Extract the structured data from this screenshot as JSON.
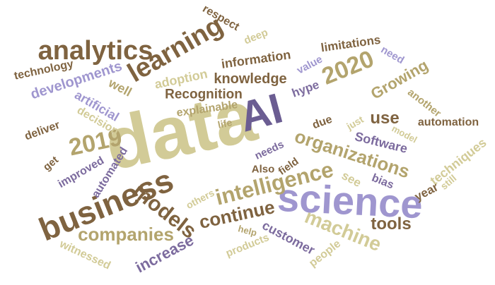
{
  "words": [
    {
      "text": "data",
      "color": "#d2cb97"
    },
    {
      "text": "science",
      "color": "#9f96cf"
    },
    {
      "text": "business",
      "color": "#7f6340"
    },
    {
      "text": "analytics",
      "color": "#7f6340"
    },
    {
      "text": "learning",
      "color": "#7f6340"
    },
    {
      "text": "AI",
      "color": "#6b5d92"
    },
    {
      "text": "intelligence",
      "color": "#b3a46d"
    },
    {
      "text": "organizations",
      "color": "#b3a46d"
    },
    {
      "text": "2019",
      "color": "#b3a46d"
    },
    {
      "text": "2020",
      "color": "#b3a46d"
    },
    {
      "text": "models",
      "color": "#7f6340"
    },
    {
      "text": "machine",
      "color": "#d2cb97"
    },
    {
      "text": "continue",
      "color": "#7f6340"
    },
    {
      "text": "companies",
      "color": "#b3a46d"
    },
    {
      "text": "developments",
      "color": "#9f96cf"
    },
    {
      "text": "adoption",
      "color": "#d2cb97"
    },
    {
      "text": "knowledge",
      "color": "#7f6340"
    },
    {
      "text": "Recognition",
      "color": "#7f6340"
    },
    {
      "text": "information",
      "color": "#7f6340"
    },
    {
      "text": "limitations",
      "color": "#7f6340"
    },
    {
      "text": "Growing",
      "color": "#b3a46d"
    },
    {
      "text": "tools",
      "color": "#7f6340"
    },
    {
      "text": "use",
      "color": "#7f6340"
    },
    {
      "text": "Software",
      "color": "#7c6b9e"
    },
    {
      "text": "customer",
      "color": "#7c6b9e"
    },
    {
      "text": "increase",
      "color": "#7c6b9e"
    },
    {
      "text": "artificial",
      "color": "#9f96cf"
    },
    {
      "text": "explainable",
      "color": "#b3a46d"
    },
    {
      "text": "technology",
      "color": "#7f6340"
    },
    {
      "text": "well",
      "color": "#b3a46d"
    },
    {
      "text": "decision",
      "color": "#d2cb97"
    },
    {
      "text": "deliver",
      "color": "#7f6340"
    },
    {
      "text": "improved",
      "color": "#7c6b9e"
    },
    {
      "text": "automated",
      "color": "#7c6b9e"
    },
    {
      "text": "get",
      "color": "#7f6340"
    },
    {
      "text": "respect",
      "color": "#7f6340"
    },
    {
      "text": "deep",
      "color": "#d2cb97"
    },
    {
      "text": "value",
      "color": "#9f96cf"
    },
    {
      "text": "hype",
      "color": "#7c6b9e"
    },
    {
      "text": "need",
      "color": "#9f96cf"
    },
    {
      "text": "another",
      "color": "#b3a46d"
    },
    {
      "text": "automation",
      "color": "#7f6340"
    },
    {
      "text": "model",
      "color": "#d2cb97"
    },
    {
      "text": "just",
      "color": "#d2cb97"
    },
    {
      "text": "due",
      "color": "#7f6340"
    },
    {
      "text": "life",
      "color": "#b3a46d"
    },
    {
      "text": "needs",
      "color": "#7c6b9e"
    },
    {
      "text": "Also",
      "color": "#7f6340"
    },
    {
      "text": "field",
      "color": "#7f6340"
    },
    {
      "text": "see",
      "color": "#d2cb97"
    },
    {
      "text": "bias",
      "color": "#7c6b9e"
    },
    {
      "text": "techniques",
      "color": "#d2cb97"
    },
    {
      "text": "year",
      "color": "#7f6340"
    },
    {
      "text": "still",
      "color": "#d2cb97"
    },
    {
      "text": "others",
      "color": "#d2cb97"
    },
    {
      "text": "help",
      "color": "#b3a46d"
    },
    {
      "text": "products",
      "color": "#d2cb97"
    },
    {
      "text": "people",
      "color": "#d2cb97"
    },
    {
      "text": "witnessed",
      "color": "#d2cb97"
    }
  ]
}
